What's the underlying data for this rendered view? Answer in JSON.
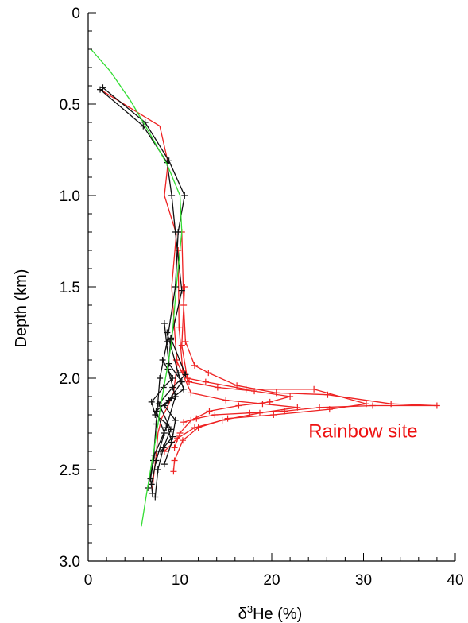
{
  "chart_data": {
    "type": "line",
    "title": "",
    "xlabel_prefix": "δ",
    "xlabel_sup": "3",
    "xlabel_suffix": "He (%)",
    "ylabel": "Depth (km)",
    "xlim": [
      0,
      40
    ],
    "ylim": [
      0,
      3.0
    ],
    "y_inverted": true,
    "grid": false,
    "x_ticks": [
      0,
      10,
      20,
      30,
      40
    ],
    "x_tick_labels": [
      "0",
      "10",
      "20",
      "30",
      "40"
    ],
    "y_ticks": [
      0,
      0.5,
      1.0,
      1.5,
      2.0,
      2.5,
      3.0
    ],
    "y_tick_labels": [
      "0",
      "0.5",
      "1.0",
      "1.5",
      "2.0",
      "2.5",
      "3.0"
    ],
    "annotation": {
      "text": "Rainbow site",
      "color": "#ee1111",
      "x": 24.0,
      "y": 2.29
    },
    "colors": {
      "red": "#ee2222",
      "black": "#111111",
      "green": "#33dd33"
    },
    "series": [
      {
        "color": "red",
        "markers": false,
        "points": [
          [
            1.3,
            0.42
          ],
          [
            7.8,
            0.62
          ],
          [
            8.7,
            0.82
          ],
          [
            8.3,
            1.0
          ],
          [
            9.6,
            1.21
          ],
          [
            9.1,
            1.5
          ],
          [
            9.5,
            1.8
          ],
          [
            9.7,
            1.92
          ],
          [
            9.3,
            2.08
          ],
          [
            8.7,
            2.15
          ],
          [
            8.0,
            2.22
          ],
          [
            7.6,
            2.3
          ],
          [
            7.4,
            2.42
          ],
          [
            7.1,
            2.55
          ],
          [
            7.0,
            2.62
          ]
        ]
      },
      {
        "color": "red",
        "markers": true,
        "points": [
          [
            10.2,
            1.2
          ],
          [
            10.4,
            1.6
          ],
          [
            10.6,
            1.8
          ],
          [
            11.6,
            1.93
          ],
          [
            13.1,
            1.97
          ],
          [
            16.2,
            2.04
          ],
          [
            20.5,
            2.08
          ],
          [
            26.1,
            2.09
          ],
          [
            33.0,
            2.14
          ],
          [
            38.0,
            2.15
          ],
          [
            31.0,
            2.15
          ],
          [
            25.2,
            2.16
          ],
          [
            21.4,
            2.18
          ],
          [
            17.6,
            2.19
          ],
          [
            13.8,
            2.2
          ],
          [
            11.8,
            2.22
          ],
          [
            10.4,
            2.24
          ]
        ]
      },
      {
        "color": "red",
        "markers": true,
        "points": [
          [
            9.8,
            1.3
          ],
          [
            9.9,
            1.72
          ],
          [
            10.3,
            1.96
          ],
          [
            11.0,
            2.02
          ],
          [
            14.1,
            2.05
          ],
          [
            18.1,
            2.07
          ],
          [
            22.0,
            2.1
          ],
          [
            19.8,
            2.13
          ],
          [
            16.4,
            2.15
          ],
          [
            13.2,
            2.18
          ],
          [
            11.2,
            2.23
          ],
          [
            10.0,
            2.3
          ],
          [
            9.4,
            2.38
          ]
        ]
      },
      {
        "color": "red",
        "markers": true,
        "points": [
          [
            10.5,
            1.5
          ],
          [
            10.2,
            1.82
          ],
          [
            10.8,
            2.0
          ],
          [
            12.8,
            2.02
          ],
          [
            17.2,
            2.06
          ],
          [
            24.6,
            2.06
          ],
          [
            30.3,
            2.14
          ],
          [
            26.3,
            2.17
          ],
          [
            20.2,
            2.2
          ],
          [
            15.2,
            2.22
          ],
          [
            12.0,
            2.27
          ],
          [
            10.3,
            2.34
          ],
          [
            9.4,
            2.45
          ],
          [
            9.3,
            2.51
          ]
        ]
      },
      {
        "color": "red",
        "markers": true,
        "points": [
          [
            9.6,
            1.9
          ],
          [
            11.2,
            2.08
          ],
          [
            15.0,
            2.12
          ],
          [
            19.0,
            2.14
          ],
          [
            22.8,
            2.16
          ],
          [
            18.7,
            2.19
          ],
          [
            14.6,
            2.23
          ],
          [
            11.6,
            2.27
          ],
          [
            9.7,
            2.33
          ],
          [
            8.3,
            2.4
          ]
        ]
      },
      {
        "color": "black",
        "markers": true,
        "points": [
          [
            1.6,
            0.41
          ],
          [
            6.2,
            0.6
          ],
          [
            8.8,
            0.81
          ],
          [
            10.5,
            1.0
          ],
          [
            9.8,
            1.2
          ],
          [
            9.5,
            1.5
          ],
          [
            8.6,
            1.8
          ],
          [
            7.8,
            2.0
          ],
          [
            7.4,
            2.25
          ],
          [
            7.1,
            2.45
          ],
          [
            6.5,
            2.6
          ]
        ]
      },
      {
        "color": "black",
        "markers": true,
        "points": [
          [
            1.3,
            0.42
          ],
          [
            6.0,
            0.62
          ],
          [
            8.6,
            0.82
          ],
          [
            9.1,
            1.0
          ],
          [
            9.5,
            1.2
          ],
          [
            10.2,
            1.52
          ],
          [
            9.0,
            1.79
          ],
          [
            8.7,
            1.95
          ],
          [
            9.5,
            2.1
          ],
          [
            8.5,
            2.27
          ],
          [
            7.2,
            2.42
          ],
          [
            6.8,
            2.55
          ],
          [
            7.0,
            2.63
          ]
        ]
      },
      {
        "color": "black",
        "markers": true,
        "points": [
          [
            8.3,
            1.7
          ],
          [
            8.8,
            1.92
          ],
          [
            10.2,
            2.02
          ],
          [
            8.8,
            2.12
          ],
          [
            7.4,
            2.18
          ],
          [
            8.3,
            2.3
          ],
          [
            7.4,
            2.45
          ],
          [
            6.9,
            2.58
          ]
        ]
      },
      {
        "color": "black",
        "markers": true,
        "points": [
          [
            9.0,
            1.78
          ],
          [
            10.6,
            1.98
          ],
          [
            9.2,
            2.05
          ],
          [
            7.7,
            2.14
          ],
          [
            9.0,
            2.28
          ],
          [
            8.2,
            2.38
          ],
          [
            7.6,
            2.5
          ],
          [
            7.3,
            2.65
          ]
        ]
      },
      {
        "color": "black",
        "markers": true,
        "points": [
          [
            8.6,
            1.75
          ],
          [
            9.8,
            1.97
          ],
          [
            10.4,
            2.06
          ],
          [
            9.1,
            2.11
          ],
          [
            8.3,
            2.15
          ],
          [
            9.5,
            2.23
          ],
          [
            9.2,
            2.32
          ],
          [
            7.9,
            2.4
          ]
        ]
      },
      {
        "color": "black",
        "markers": true,
        "points": [
          [
            8.1,
            1.9
          ],
          [
            9.2,
            2.0
          ],
          [
            8.2,
            2.05
          ],
          [
            6.9,
            2.13
          ],
          [
            7.3,
            2.2
          ],
          [
            8.6,
            2.25
          ],
          [
            9.1,
            2.35
          ],
          [
            8.3,
            2.47
          ]
        ]
      },
      {
        "color": "green",
        "markers": false,
        "points": [
          [
            0.3,
            0.2
          ],
          [
            2.4,
            0.32
          ],
          [
            4.6,
            0.48
          ],
          [
            6.7,
            0.66
          ],
          [
            8.6,
            0.83
          ],
          [
            10.0,
            1.0
          ],
          [
            10.2,
            1.2
          ],
          [
            9.6,
            1.5
          ],
          [
            9.1,
            1.8
          ],
          [
            8.6,
            1.95
          ],
          [
            7.9,
            2.15
          ],
          [
            7.3,
            2.35
          ],
          [
            6.8,
            2.5
          ],
          [
            6.3,
            2.65
          ],
          [
            5.8,
            2.81
          ]
        ]
      }
    ]
  }
}
